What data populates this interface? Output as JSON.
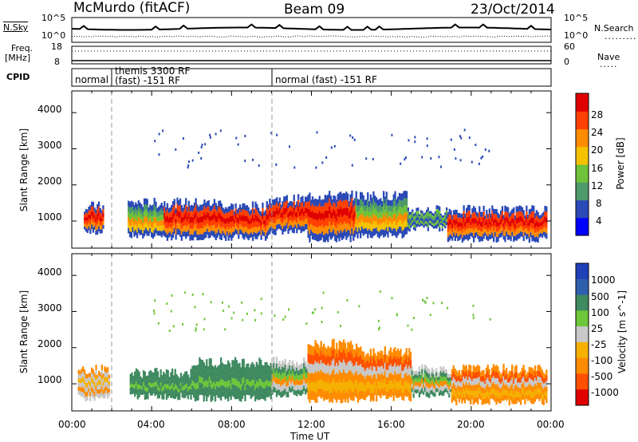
{
  "header": {
    "title": "McMurdo (fitACF)",
    "beam": "Beam 09",
    "date": "23/Oct/2014"
  },
  "summary_panel": {
    "left_label": "N.Sky",
    "right_label": "N.Search",
    "left_ticks": [
      "10^5",
      "10^0"
    ],
    "right_ticks": [
      "10^5",
      "10^0"
    ]
  },
  "freq_panel": {
    "left_label_1": "Freq.",
    "left_label_2": "[MHz]",
    "right_label": "Nave",
    "left_ticks": [
      "18",
      "8"
    ],
    "right_ticks": [
      "60",
      "0"
    ]
  },
  "cpid": {
    "label": "CPID",
    "segments": [
      {
        "line1": "normal",
        "line2": ""
      },
      {
        "line1": "themis 3300 RF",
        "line2": "(fast) -151 RF"
      },
      {
        "line1": "normal (fast) -151 RF",
        "line2": ""
      }
    ]
  },
  "colors": {
    "power_scale": [
      "#0000ff",
      "#2b4ab7",
      "#4d9a6a",
      "#6fc23a",
      "#f5c200",
      "#ff8c00",
      "#ff4000",
      "#e00000"
    ],
    "velocity_scale": [
      "#2040b8",
      "#2e5fae",
      "#3f8a60",
      "#6ec63a",
      "#c8c8c8",
      "#f5b000",
      "#ff8c00",
      "#ff5000",
      "#e00000"
    ],
    "ground_scatter": "#c0c0b0"
  },
  "chart_data": [
    {
      "type": "heatmap",
      "panel": "power",
      "ylabel": "Slant Range [km]",
      "yticks": [
        "1000",
        "2000",
        "3000",
        "4000"
      ],
      "ylim": [
        250,
        4600
      ],
      "xlim": [
        0,
        24
      ],
      "colorbar_label": "Power [dB]",
      "colorbar_ticks": [
        "4",
        "8",
        "12",
        "16",
        "20",
        "24",
        "28"
      ],
      "bands": [
        {
          "x": [
            0.6,
            1.6
          ],
          "range": [
            700,
            1400
          ],
          "level": "high"
        },
        {
          "x": [
            2.8,
            4.6
          ],
          "range": [
            600,
            1500
          ],
          "level": "mid"
        },
        {
          "x": [
            4.6,
            7.6
          ],
          "range": [
            550,
            1500
          ],
          "level": "high"
        },
        {
          "x": [
            7.6,
            9.8
          ],
          "range": [
            550,
            1400
          ],
          "level": "high"
        },
        {
          "x": [
            9.8,
            11.8
          ],
          "range": [
            700,
            1600
          ],
          "level": "high"
        },
        {
          "x": [
            11.8,
            14.2
          ],
          "range": [
            500,
            1700
          ],
          "level": "high"
        },
        {
          "x": [
            14.2,
            16.8
          ],
          "range": [
            600,
            1700
          ],
          "level": "mid"
        },
        {
          "x": [
            16.8,
            18.8
          ],
          "range": [
            800,
            1300
          ],
          "level": "low"
        },
        {
          "x": [
            18.8,
            23.8
          ],
          "range": [
            500,
            1300
          ],
          "level": "high"
        }
      ]
    },
    {
      "type": "heatmap",
      "panel": "velocity",
      "ylabel": "Slant Range [km]",
      "yticks": [
        "1000",
        "2000",
        "3000",
        "4000"
      ],
      "ylim": [
        250,
        4600
      ],
      "xlim": [
        0,
        24
      ],
      "xlabel": "Time UT",
      "xticks": [
        "00:00",
        "04:00",
        "08:00",
        "12:00",
        "16:00",
        "20:00",
        "00:00"
      ],
      "colorbar_label": "Velocity [m s^-1]",
      "colorbar_ticks": [
        "1000",
        "500",
        "100",
        "25",
        "-25",
        "-100",
        "-500",
        "-1000"
      ],
      "bands": [
        {
          "x": [
            0.3,
            1.9
          ],
          "range": [
            600,
            1400
          ],
          "level": "gs"
        },
        {
          "x": [
            2.9,
            6.0
          ],
          "range": [
            650,
            1300
          ],
          "level": "toward"
        },
        {
          "x": [
            6.0,
            10.0
          ],
          "range": [
            600,
            1600
          ],
          "level": "toward"
        },
        {
          "x": [
            10.0,
            11.8
          ],
          "range": [
            700,
            1600
          ],
          "level": "mixed"
        },
        {
          "x": [
            11.8,
            14.5
          ],
          "range": [
            550,
            2100
          ],
          "level": "away"
        },
        {
          "x": [
            14.5,
            17.0
          ],
          "range": [
            600,
            1900
          ],
          "level": "away"
        },
        {
          "x": [
            17.0,
            19.0
          ],
          "range": [
            700,
            1400
          ],
          "level": "mixed"
        },
        {
          "x": [
            19.0,
            23.8
          ],
          "range": [
            500,
            1400
          ],
          "level": "away"
        }
      ]
    }
  ]
}
